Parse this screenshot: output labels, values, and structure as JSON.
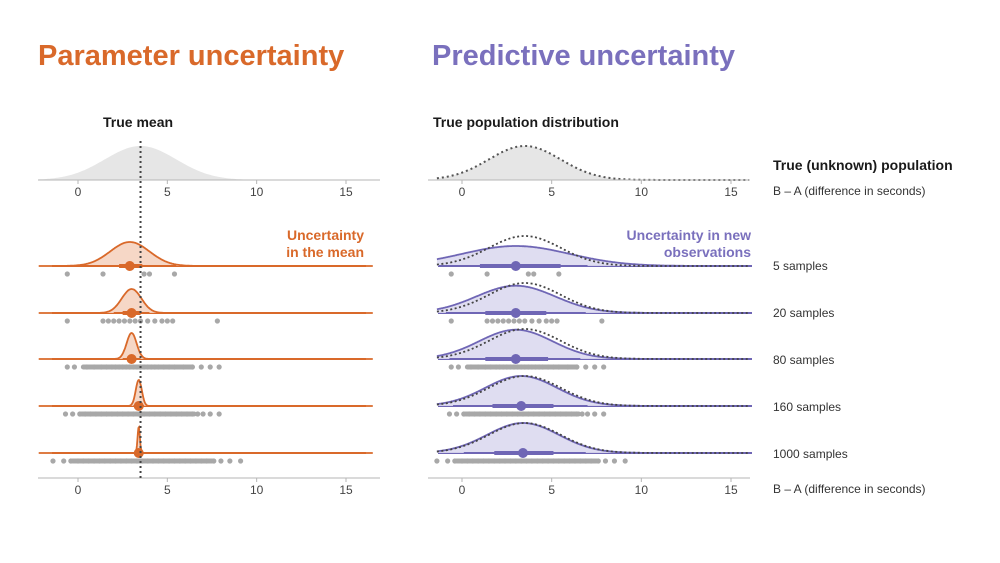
{
  "left_panel": {
    "title": "Parameter uncertainty",
    "subtitle": "True mean",
    "annotation_line1": "Uncertainty",
    "annotation_line2": "in the mean"
  },
  "right_panel": {
    "title": "Predictive uncertainty",
    "subtitle": "True population distribution",
    "annotation_line1": "Uncertainty in new",
    "annotation_line2": "observations"
  },
  "population_label": "True (unknown) population",
  "x_axis_label": "B – A (difference in seconds)",
  "colors": {
    "parameter": "#d9692a",
    "parameter_fill": "#f5d3c0",
    "predictive": "#6f66b5",
    "predictive_fill": "#dcd9ef",
    "population_fill": "#e6e6e6",
    "points": "#a8a8a8"
  },
  "chart_data": [
    {
      "type": "area",
      "name": "Parameter uncertainty",
      "xlim": [
        -2.2,
        16.5
      ],
      "xticks": [
        0,
        5,
        10,
        15
      ],
      "xlabel": "B – A (difference in seconds)",
      "true_mean": 3.5,
      "true_sd": 2,
      "rows": [
        {
          "label": "5 samples",
          "mean": 2.9,
          "sd": 1.1,
          "interval_66": [
            2.3,
            3.6
          ],
          "interval_95": [
            -0.3,
            5.5
          ],
          "points": [
            -0.6,
            1.4,
            3.7,
            4.0,
            5.4
          ]
        },
        {
          "label": "20 samples",
          "mean": 3.0,
          "sd": 0.55,
          "interval_66": [
            2.5,
            3.5
          ],
          "interval_95": [
            2.0,
            4.0
          ],
          "points": [
            -0.6,
            1.4,
            1.7,
            2.0,
            2.3,
            2.6,
            2.9,
            3.2,
            3.5,
            3.9,
            4.3,
            4.7,
            5.0,
            5.3,
            7.8
          ]
        },
        {
          "label": "80 samples",
          "mean": 3.0,
          "sd": 0.28,
          "interval_66": [
            2.8,
            3.2
          ],
          "interval_95": [
            2.5,
            3.5
          ],
          "points": [
            -0.6,
            -0.2,
            0.5,
            0.9,
            1.3,
            1.6,
            1.9,
            2.1,
            2.3,
            2.5,
            2.7,
            2.9,
            3.1,
            3.3,
            3.5,
            3.7,
            3.9,
            4.1,
            4.3,
            4.5,
            4.8,
            5.1,
            5.4,
            5.9,
            6.4,
            6.9,
            7.4,
            7.9
          ]
        },
        {
          "label": "160 samples",
          "mean": 3.4,
          "sd": 0.17,
          "interval_66": [
            3.2,
            3.6
          ],
          "interval_95": [
            3.1,
            3.7
          ],
          "points": [
            -0.7,
            -0.3,
            0.1,
            0.4,
            0.7,
            1.0,
            1.3,
            1.6,
            1.9,
            2.2,
            2.5,
            2.8,
            3.1,
            3.4,
            3.7,
            4.0,
            4.3,
            4.6,
            4.9,
            5.2,
            5.5,
            5.8,
            6.1,
            6.4,
            6.7,
            7.0,
            7.4,
            7.9
          ]
        },
        {
          "label": "1000 samples",
          "mean": 3.4,
          "sd": 0.065,
          "interval_66": [
            3.3,
            3.5
          ],
          "interval_95": [
            3.2,
            3.6
          ],
          "points": [
            -1.4,
            -0.8,
            -0.4,
            0.0,
            0.3,
            0.6,
            0.9,
            1.2,
            1.5,
            1.8,
            2.1,
            2.4,
            2.7,
            3.0,
            3.3,
            3.6,
            3.9,
            4.2,
            4.5,
            4.8,
            5.1,
            5.4,
            5.7,
            6.0,
            6.3,
            6.6,
            6.9,
            7.2,
            7.6,
            8.0,
            8.5,
            9.1
          ]
        }
      ]
    },
    {
      "type": "area",
      "name": "Predictive uncertainty",
      "xlim": [
        -1.4,
        16.0
      ],
      "xticks": [
        0,
        5,
        10,
        15
      ],
      "xlabel": "B – A (difference in seconds)",
      "true_mean": 3.5,
      "true_sd": 2,
      "rows": [
        {
          "label": "5 samples",
          "mean": 3.0,
          "sd": 3.0,
          "interval_66": [
            1.0,
            5.5
          ],
          "interval_95": [
            -1.3,
            7.0
          ],
          "points": [
            -0.6,
            1.4,
            3.7,
            4.0,
            5.4
          ]
        },
        {
          "label": "20 samples",
          "mean": 3.0,
          "sd": 2.2,
          "interval_66": [
            1.3,
            4.7
          ],
          "interval_95": [
            -0.9,
            6.9
          ],
          "points": [
            -0.6,
            1.4,
            1.7,
            2.0,
            2.3,
            2.6,
            2.9,
            3.2,
            3.5,
            3.9,
            4.3,
            4.7,
            5.0,
            5.3,
            7.8
          ]
        },
        {
          "label": "80 samples",
          "mean": 3.0,
          "sd": 2.05,
          "interval_66": [
            1.3,
            4.8
          ],
          "interval_95": [
            -0.7,
            6.6
          ],
          "points": [
            -0.6,
            -0.2,
            0.5,
            0.9,
            1.3,
            1.6,
            1.9,
            2.1,
            2.3,
            2.5,
            2.7,
            2.9,
            3.1,
            3.3,
            3.5,
            3.7,
            3.9,
            4.1,
            4.3,
            4.5,
            4.8,
            5.1,
            5.4,
            5.9,
            6.4,
            6.9,
            7.4,
            7.9
          ]
        },
        {
          "label": "160 samples",
          "mean": 3.3,
          "sd": 2.0,
          "interval_66": [
            1.7,
            5.1
          ],
          "interval_95": [
            -0.5,
            7.0
          ],
          "points": [
            -0.7,
            -0.3,
            0.1,
            0.4,
            0.7,
            1.0,
            1.3,
            1.6,
            1.9,
            2.2,
            2.5,
            2.8,
            3.1,
            3.4,
            3.7,
            4.0,
            4.3,
            4.6,
            4.9,
            5.2,
            5.5,
            5.8,
            6.1,
            6.4,
            6.7,
            7.0,
            7.4,
            7.9
          ]
        },
        {
          "label": "1000 samples",
          "mean": 3.4,
          "sd": 2.0,
          "interval_66": [
            1.8,
            5.1
          ],
          "interval_95": [
            0.1,
            6.9
          ],
          "points": [
            -1.4,
            -0.8,
            -0.4,
            0.0,
            0.3,
            0.6,
            0.9,
            1.2,
            1.5,
            1.8,
            2.1,
            2.4,
            2.7,
            3.0,
            3.3,
            3.6,
            3.9,
            4.2,
            4.5,
            4.8,
            5.1,
            5.4,
            5.7,
            6.0,
            6.3,
            6.6,
            6.9,
            7.2,
            7.6,
            8.0,
            8.5,
            9.1
          ]
        }
      ]
    }
  ]
}
